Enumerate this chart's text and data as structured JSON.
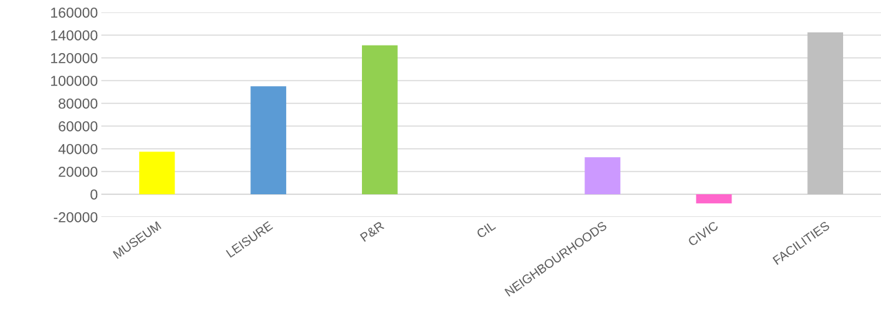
{
  "chart_data": {
    "type": "bar",
    "categories": [
      "MUSEUM",
      "LEISURE",
      "P&R",
      "CIL",
      "NEIGHBOURHOODS",
      "CIVIC",
      "FACILITIES"
    ],
    "values": [
      37500,
      95000,
      131000,
      0,
      32500,
      -8000,
      142500
    ],
    "colors": [
      "#ffff00",
      "#5b9bd5",
      "#92d050",
      "#ed7d31",
      "#cc99ff",
      "#ff66cc",
      "#bfbfbf"
    ],
    "ylim": [
      -20000,
      160000
    ],
    "yticks": [
      -20000,
      0,
      20000,
      40000,
      60000,
      80000,
      100000,
      120000,
      140000,
      160000
    ],
    "grid": "y",
    "legend": false
  }
}
